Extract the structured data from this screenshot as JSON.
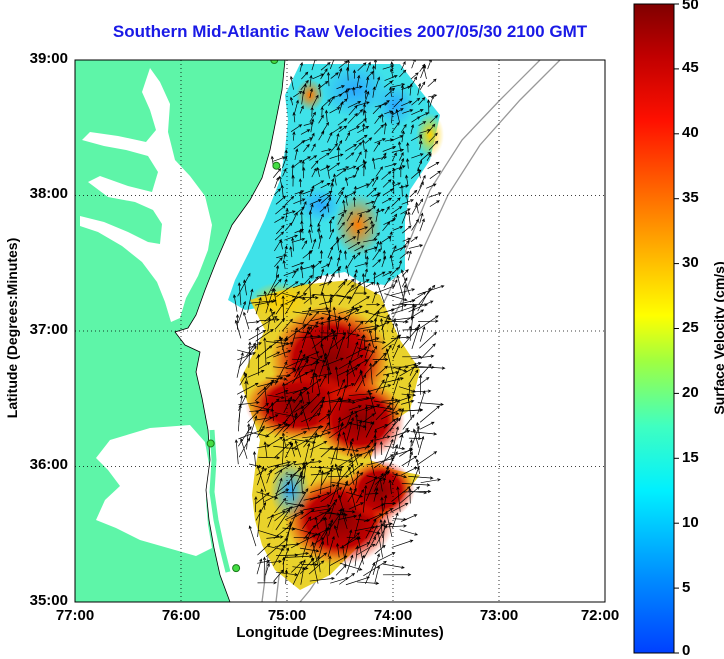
{
  "title": "Southern Mid-Atlantic Raw Velocities 2007/05/30 2100 GMT",
  "xaxis": {
    "label": "Longitude (Degrees:Minutes)",
    "ticks": [
      "77:00",
      "76:00",
      "75:00",
      "74:00",
      "73:00",
      "72:00"
    ]
  },
  "yaxis": {
    "label": "Latitude (Degrees:Minutes)",
    "ticks": [
      "39:00",
      "38:00",
      "37:00",
      "36:00",
      "35:00"
    ]
  },
  "colorbar": {
    "label": "Surface Velocity (cm/s)",
    "ticks": [
      "50",
      "45",
      "40",
      "35",
      "30",
      "25",
      "20",
      "15",
      "10",
      "5",
      "0"
    ],
    "min": 0,
    "max": 50
  },
  "colors": {
    "land": "#5ef5a8",
    "water": "#ffffff",
    "title": "#1a1ae6",
    "station": "#44dd44"
  },
  "map": {
    "lon_range": [
      -77,
      -72
    ],
    "lat_range": [
      35,
      39
    ],
    "grid": "dotted",
    "stations": [
      {
        "lon": -75.12,
        "lat": 39.0
      },
      {
        "lon": -75.1,
        "lat": 38.22
      },
      {
        "lon": -75.72,
        "lat": 36.17
      },
      {
        "lon": -75.48,
        "lat": 35.25
      }
    ]
  }
}
